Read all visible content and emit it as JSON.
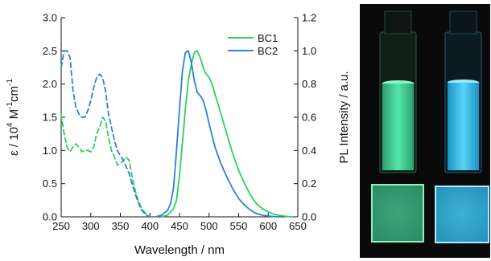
{
  "chart_data": {
    "type": "line",
    "xlabel": "Wavelength / nm",
    "ylabel_left_main": "ε / 10",
    "ylabel_left_sup1": "4",
    "ylabel_left_mid": " M",
    "ylabel_left_sup2": "-1",
    "ylabel_left_end": "cm",
    "ylabel_left_sup3": "-1",
    "ylabel_right": "PL Intensity / a.u.",
    "xlim": [
      250,
      650
    ],
    "ylim_left": [
      0,
      3.0
    ],
    "ylim_right": [
      0,
      1.2
    ],
    "x_ticks": [
      "250",
      "300",
      "350",
      "400",
      "450",
      "500",
      "550",
      "600",
      "650"
    ],
    "y_left_ticks": [
      "0.0",
      "0.5",
      "1.0",
      "1.5",
      "2.0",
      "2.5",
      "3.0"
    ],
    "y_right_ticks": [
      "0.0",
      "0.2",
      "0.4",
      "0.6",
      "0.8",
      "1.0",
      "1.2"
    ],
    "legend_position": "top-right",
    "colors": {
      "BC1": "#2fcf5c",
      "BC2": "#2a7fe0"
    },
    "series": [
      {
        "name": "BC1",
        "kind": "absorption",
        "axis": "left",
        "style": "dashed",
        "x": [
          250,
          255,
          260,
          265,
          270,
          275,
          280,
          285,
          290,
          295,
          300,
          305,
          310,
          315,
          320,
          325,
          330,
          335,
          340,
          345,
          350,
          355,
          360,
          365,
          370,
          375,
          380,
          385,
          390,
          395,
          400
        ],
        "y": [
          1.55,
          1.25,
          1.05,
          0.98,
          1.05,
          1.1,
          1.05,
          0.98,
          1.0,
          1.0,
          0.98,
          1.05,
          1.25,
          1.35,
          1.5,
          1.45,
          1.2,
          1.0,
          0.9,
          0.78,
          0.8,
          0.85,
          0.9,
          0.85,
          0.6,
          0.4,
          0.25,
          0.15,
          0.08,
          0.03,
          0.0
        ]
      },
      {
        "name": "BC2",
        "kind": "absorption",
        "axis": "left",
        "style": "dashed",
        "x": [
          250,
          255,
          260,
          265,
          270,
          275,
          280,
          285,
          290,
          295,
          300,
          305,
          310,
          315,
          320,
          325,
          330,
          335,
          340,
          345,
          350,
          355,
          360,
          365,
          370,
          375,
          380,
          385,
          390,
          395,
          400
        ],
        "y": [
          2.25,
          2.5,
          2.5,
          2.4,
          1.9,
          1.65,
          1.55,
          1.5,
          1.5,
          1.6,
          1.75,
          1.95,
          2.1,
          2.15,
          2.1,
          1.9,
          1.55,
          1.35,
          1.15,
          1.0,
          0.92,
          0.85,
          0.75,
          0.65,
          0.5,
          0.35,
          0.22,
          0.12,
          0.06,
          0.02,
          0.0
        ]
      },
      {
        "name": "BC1",
        "kind": "emission",
        "axis": "right",
        "style": "solid",
        "x": [
          420,
          430,
          440,
          445,
          450,
          455,
          460,
          465,
          470,
          475,
          480,
          485,
          490,
          495,
          500,
          505,
          510,
          520,
          530,
          540,
          550,
          560,
          570,
          580,
          590,
          600,
          610,
          620,
          630,
          640
        ],
        "y": [
          0.0,
          0.01,
          0.05,
          0.1,
          0.25,
          0.45,
          0.65,
          0.82,
          0.92,
          0.99,
          1.0,
          0.96,
          0.9,
          0.86,
          0.84,
          0.8,
          0.74,
          0.62,
          0.5,
          0.38,
          0.28,
          0.2,
          0.13,
          0.08,
          0.05,
          0.03,
          0.015,
          0.008,
          0.003,
          0.0
        ]
      },
      {
        "name": "BC2",
        "kind": "emission",
        "axis": "right",
        "style": "solid",
        "x": [
          410,
          420,
          430,
          435,
          440,
          445,
          450,
          455,
          460,
          465,
          470,
          475,
          480,
          485,
          490,
          495,
          500,
          510,
          520,
          530,
          540,
          550,
          560,
          570,
          580,
          590,
          600,
          610,
          620
        ],
        "y": [
          0.0,
          0.01,
          0.04,
          0.08,
          0.18,
          0.4,
          0.65,
          0.88,
          0.99,
          1.0,
          0.93,
          0.82,
          0.75,
          0.73,
          0.7,
          0.64,
          0.56,
          0.42,
          0.32,
          0.24,
          0.17,
          0.11,
          0.07,
          0.04,
          0.02,
          0.01,
          0.005,
          0.002,
          0.0
        ]
      }
    ]
  },
  "photo": {
    "vial_colors": [
      "#4ee0a0",
      "#45c9ee"
    ],
    "background_color": "#0a0a0a"
  }
}
